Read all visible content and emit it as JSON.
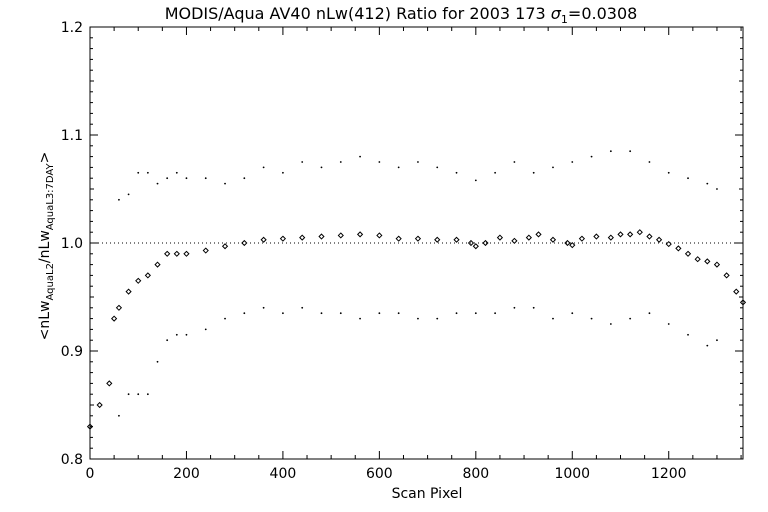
{
  "chart_data": {
    "type": "scatter",
    "title_main": "MODIS/Aqua AV40 nLw(412) Ratio for 2003 173 ",
    "title_sigma": "σ",
    "title_sigma_sub": "1",
    "title_sigma_val": "=0.0308",
    "xlabel": "Scan Pixel",
    "ylabel_parts": {
      "open": "<nLw",
      "sub1": "AquaL2",
      "mid": "/nLw",
      "sub2": "AquaL3:7DAY",
      "close": ">"
    },
    "xlim": [
      0,
      1354
    ],
    "ylim": [
      0.8,
      1.2
    ],
    "xticks": [
      0,
      200,
      400,
      600,
      800,
      1000,
      1200
    ],
    "xtick_labels": [
      "0",
      "200",
      "400",
      "600",
      "800",
      "1000",
      "1200"
    ],
    "yticks": [
      0.8,
      0.9,
      1.0,
      1.1,
      1.2
    ],
    "ytick_labels": [
      "0.8",
      "0.9",
      "1.0",
      "1.1",
      "1.2"
    ],
    "reference_line": 1.0,
    "grid": false,
    "series": [
      {
        "role": "mean",
        "marker": "diamond",
        "x": [
          0,
          20,
          40,
          50,
          60,
          80,
          100,
          120,
          140,
          160,
          180,
          200,
          240,
          280,
          320,
          360,
          400,
          440,
          480,
          520,
          560,
          600,
          640,
          680,
          720,
          760,
          790,
          800,
          820,
          850,
          880,
          910,
          930,
          960,
          990,
          1000,
          1020,
          1050,
          1080,
          1100,
          1120,
          1140,
          1160,
          1180,
          1200,
          1220,
          1240,
          1260,
          1280,
          1300,
          1320,
          1340,
          1354
        ],
        "y": [
          0.83,
          0.85,
          0.87,
          0.93,
          0.94,
          0.955,
          0.965,
          0.97,
          0.98,
          0.99,
          0.99,
          0.99,
          0.993,
          0.997,
          1.0,
          1.003,
          1.004,
          1.005,
          1.006,
          1.007,
          1.008,
          1.007,
          1.004,
          1.004,
          1.003,
          1.003,
          1.0,
          0.997,
          1.0,
          1.005,
          1.002,
          1.005,
          1.008,
          1.003,
          1.0,
          0.998,
          1.004,
          1.006,
          1.005,
          1.008,
          1.008,
          1.01,
          1.006,
          1.003,
          0.999,
          0.995,
          0.99,
          0.985,
          0.983,
          0.98,
          0.97,
          0.955,
          0.945
        ]
      },
      {
        "role": "upper",
        "marker": "dot",
        "x": [
          60,
          80,
          100,
          120,
          140,
          160,
          180,
          200,
          240,
          280,
          320,
          360,
          400,
          440,
          480,
          520,
          560,
          600,
          640,
          680,
          720,
          760,
          800,
          840,
          880,
          920,
          960,
          1000,
          1040,
          1080,
          1120,
          1160,
          1200,
          1240,
          1280,
          1300
        ],
        "y": [
          1.04,
          1.045,
          1.065,
          1.065,
          1.055,
          1.06,
          1.065,
          1.06,
          1.06,
          1.055,
          1.06,
          1.07,
          1.065,
          1.075,
          1.07,
          1.075,
          1.08,
          1.075,
          1.07,
          1.075,
          1.07,
          1.065,
          1.058,
          1.065,
          1.075,
          1.065,
          1.07,
          1.075,
          1.08,
          1.085,
          1.085,
          1.075,
          1.065,
          1.06,
          1.055,
          1.05
        ]
      },
      {
        "role": "lower",
        "marker": "dot",
        "x": [
          60,
          80,
          100,
          120,
          140,
          160,
          180,
          200,
          240,
          280,
          320,
          360,
          400,
          440,
          480,
          520,
          560,
          600,
          640,
          680,
          720,
          760,
          800,
          840,
          880,
          920,
          960,
          1000,
          1040,
          1080,
          1120,
          1160,
          1200,
          1240,
          1280,
          1300
        ],
        "y": [
          0.84,
          0.86,
          0.86,
          0.86,
          0.89,
          0.91,
          0.915,
          0.915,
          0.92,
          0.93,
          0.935,
          0.94,
          0.935,
          0.94,
          0.935,
          0.935,
          0.93,
          0.935,
          0.935,
          0.93,
          0.93,
          0.935,
          0.935,
          0.935,
          0.94,
          0.94,
          0.93,
          0.935,
          0.93,
          0.925,
          0.93,
          0.935,
          0.925,
          0.915,
          0.905,
          0.91
        ]
      }
    ]
  }
}
